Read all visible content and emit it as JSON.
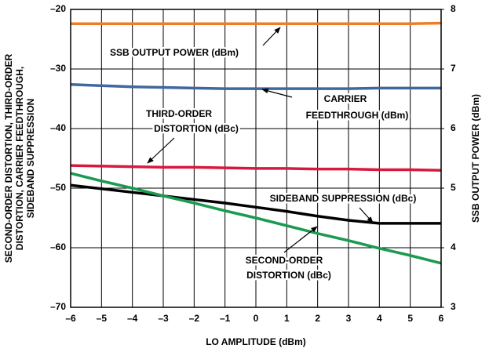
{
  "chart_data": {
    "type": "line",
    "x_label": "LO AMPLITUDE (dBm)",
    "y_label_lines": [
      "SECOND-ORDER DISTORTION, THIRD-ORDER",
      "DISTORTION, CARRIER FEEDTHROUGH,",
      "SIDEBAND SUPPRESSION"
    ],
    "y2_label": "SSB OUTPUT POWER (dBm)",
    "x": [
      -6,
      -5,
      -4,
      -3,
      -2,
      -1,
      0,
      1,
      2,
      3,
      4,
      5,
      6
    ],
    "xlim": [
      -6,
      6
    ],
    "xticks": [
      {
        "value": -6,
        "label": "–6"
      },
      {
        "value": -5,
        "label": "–5"
      },
      {
        "value": -4,
        "label": "–4"
      },
      {
        "value": -3,
        "label": "–3"
      },
      {
        "value": -2,
        "label": "–2"
      },
      {
        "value": -1,
        "label": "–1"
      },
      0,
      1,
      2,
      3,
      4,
      5,
      6
    ],
    "ylim": [
      -70,
      -20
    ],
    "yticks": [
      {
        "value": -70,
        "label": "–70"
      },
      {
        "value": -60,
        "label": "–60"
      },
      {
        "value": -50,
        "label": "–50"
      },
      {
        "value": -40,
        "label": "–40"
      },
      {
        "value": -30,
        "label": "–30"
      },
      {
        "value": -20,
        "label": "–20"
      }
    ],
    "y2lim": [
      3,
      8
    ],
    "y2ticks": [
      3,
      4,
      5,
      6,
      7,
      8
    ],
    "grid": true,
    "series": [
      {
        "name": "SSB OUTPUT POWER",
        "color": "#f07d26",
        "axis": "y2",
        "values": [
          7.76,
          7.76,
          7.76,
          7.76,
          7.76,
          7.76,
          7.76,
          7.76,
          7.76,
          7.76,
          7.76,
          7.76,
          7.77
        ]
      },
      {
        "name": "CARRIER FEEDTHROUGH",
        "color": "#41679f",
        "values": [
          -32.6,
          -32.8,
          -33.0,
          -33.1,
          -33.2,
          -33.3,
          -33.3,
          -33.3,
          -33.3,
          -33.3,
          -33.2,
          -33.2,
          -33.2
        ]
      },
      {
        "name": "THIRD-ORDER DISTORTION",
        "color": "#d8193f",
        "values": [
          -46.2,
          -46.3,
          -46.4,
          -46.5,
          -46.5,
          -46.6,
          -46.7,
          -46.7,
          -46.8,
          -46.8,
          -46.9,
          -46.9,
          -47.0
        ]
      },
      {
        "name": "SIDEBAND SUPPRESSION",
        "color": "#000000",
        "values": [
          -49.5,
          -50.1,
          -50.7,
          -51.3,
          -51.9,
          -52.5,
          -53.2,
          -53.9,
          -54.7,
          -55.4,
          -55.9,
          -55.9,
          -55.9
        ]
      },
      {
        "name": "SECOND-ORDER DISTORTION",
        "color": "#1b9a52",
        "values": [
          -47.5,
          -48.8,
          -50.0,
          -51.3,
          -52.5,
          -53.8,
          -55.0,
          -56.3,
          -57.6,
          -58.8,
          -60.1,
          -61.3,
          -62.6
        ]
      }
    ],
    "annotations": [
      {
        "lines": [
          "SSB OUTPUT POWER (dBm)"
        ]
      },
      {
        "lines": [
          "CARRIER",
          "FEEDTHROUGH (dBm)"
        ]
      },
      {
        "lines": [
          "THIRD-ORDER",
          "DISTORTION (dBc)"
        ]
      },
      {
        "lines": [
          "SIDEBAND SUPPRESSION (dBc)"
        ]
      },
      {
        "lines": [
          "SECOND-ORDER",
          "DISTORTION (dBc)"
        ]
      }
    ]
  }
}
